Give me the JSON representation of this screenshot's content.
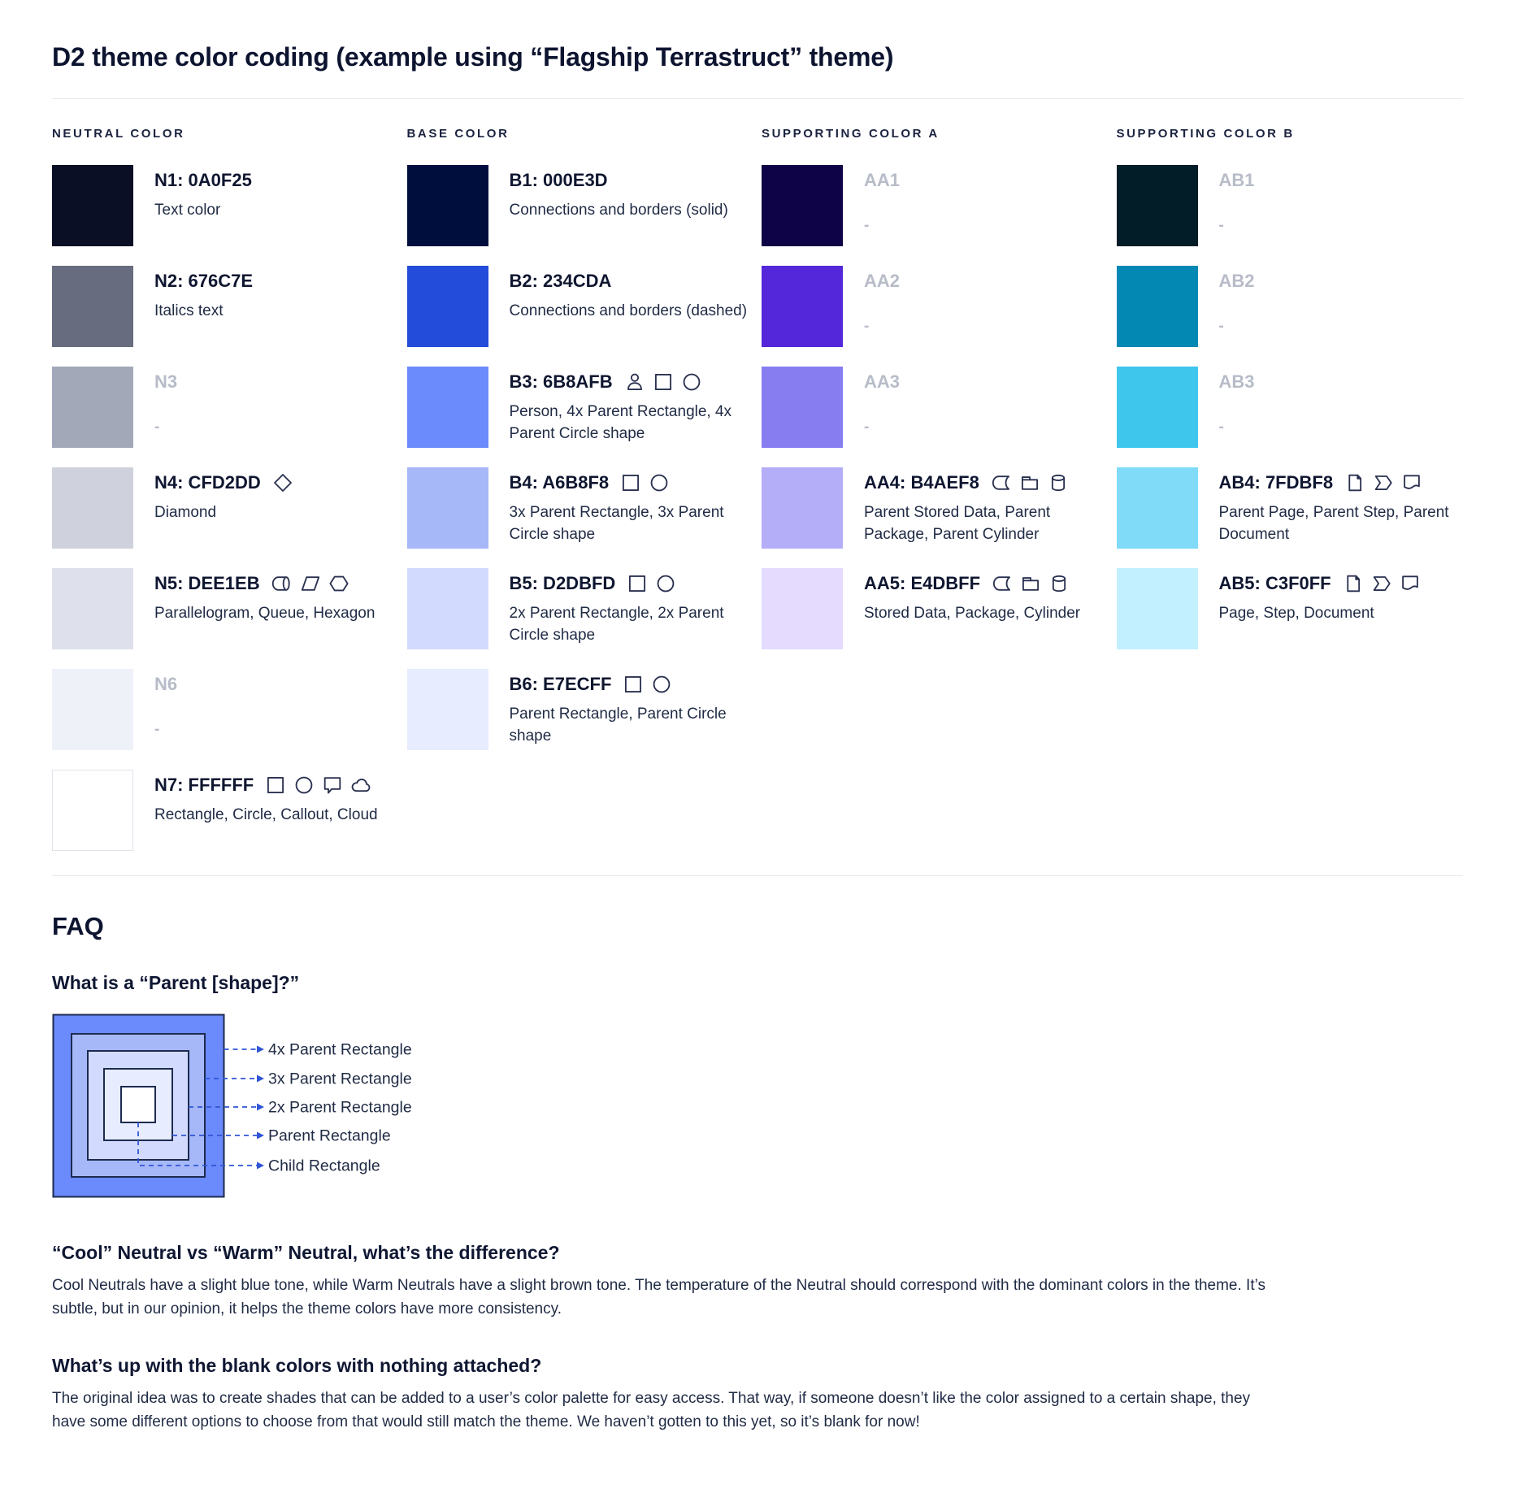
{
  "page": {
    "title": "D2 theme color coding (example using “Flagship Terrastruct” theme)"
  },
  "palette": {
    "columns": [
      {
        "header": "NEUTRAL COLOR",
        "entries": [
          {
            "id": "N1",
            "label": "N1: 0A0F25",
            "swatch": "#0A0F25",
            "desc": "Text color",
            "icons": [],
            "muted": false,
            "swatch_border": false
          },
          {
            "id": "N2",
            "label": "N2: 676C7E",
            "swatch": "#676C7E",
            "desc": "Italics text",
            "icons": [],
            "muted": false,
            "swatch_border": false
          },
          {
            "id": "N3",
            "label": "N3",
            "swatch": "#A2A8B8",
            "desc": "-",
            "icons": [],
            "muted": true,
            "swatch_border": false
          },
          {
            "id": "N4",
            "label": "N4: CFD2DD",
            "swatch": "#CFD2DD",
            "desc": "Diamond",
            "icons": [
              "diamond"
            ],
            "muted": false,
            "swatch_border": false
          },
          {
            "id": "N5",
            "label": "N5: DEE1EB",
            "swatch": "#DEE1EB",
            "desc": "Parallelogram, Queue, Hexagon",
            "icons": [
              "queue",
              "parallelogram",
              "hexagon"
            ],
            "muted": false,
            "swatch_border": false
          },
          {
            "id": "N6",
            "label": "N6",
            "swatch": "#EEF1F8",
            "desc": "-",
            "icons": [],
            "muted": true,
            "swatch_border": false
          },
          {
            "id": "N7",
            "label": "N7: FFFFFF",
            "swatch": "#FFFFFF",
            "desc": "Rectangle, Circle, Callout, Cloud",
            "icons": [
              "rectangle",
              "circle",
              "callout",
              "cloud"
            ],
            "muted": false,
            "swatch_border": true
          }
        ]
      },
      {
        "header": "BASE COLOR",
        "entries": [
          {
            "id": "B1",
            "label": "B1: 000E3D",
            "swatch": "#000E3D",
            "desc": "Connections and borders (solid)",
            "icons": [],
            "muted": false,
            "swatch_border": false
          },
          {
            "id": "B2",
            "label": "B2: 234CDA",
            "swatch": "#234CDA",
            "desc": "Connections and borders (dashed)",
            "icons": [],
            "muted": false,
            "swatch_border": false
          },
          {
            "id": "B3",
            "label": "B3: 6B8AFB",
            "swatch": "#6B8AFB",
            "desc": "Person, 4x Parent Rectangle, 4x Parent Circle shape",
            "icons": [
              "person",
              "rectangle",
              "circle"
            ],
            "muted": false,
            "swatch_border": false
          },
          {
            "id": "B4",
            "label": "B4: A6B8F8",
            "swatch": "#A6B8F8",
            "desc": "3x Parent Rectangle, 3x Parent Circle shape",
            "icons": [
              "rectangle",
              "circle"
            ],
            "muted": false,
            "swatch_border": false
          },
          {
            "id": "B5",
            "label": "B5: D2DBFD",
            "swatch": "#D2DBFD",
            "desc": "2x Parent Rectangle, 2x Parent Circle shape",
            "icons": [
              "rectangle",
              "circle"
            ],
            "muted": false,
            "swatch_border": false
          },
          {
            "id": "B6",
            "label": "B6: E7ECFF",
            "swatch": "#E7ECFF",
            "desc": "Parent Rectangle, Parent Circle shape",
            "icons": [
              "rectangle",
              "circle"
            ],
            "muted": false,
            "swatch_border": false
          }
        ]
      },
      {
        "header": "SUPPORTING COLOR A",
        "entries": [
          {
            "id": "AA1",
            "label": "AA1",
            "swatch": "#0E0346",
            "desc": "-",
            "icons": [],
            "muted": true,
            "swatch_border": false
          },
          {
            "id": "AA2",
            "label": "AA2",
            "swatch": "#5527DB",
            "desc": "-",
            "icons": [],
            "muted": true,
            "swatch_border": false
          },
          {
            "id": "AA3",
            "label": "AA3",
            "swatch": "#877DF0",
            "desc": "-",
            "icons": [],
            "muted": true,
            "swatch_border": false
          },
          {
            "id": "AA4",
            "label": "AA4: B4AEF8",
            "swatch": "#B4AEF8",
            "desc": "Parent Stored Data, Parent Package,  Parent Cylinder",
            "icons": [
              "stored-data",
              "package",
              "cylinder"
            ],
            "muted": false,
            "swatch_border": false
          },
          {
            "id": "AA5",
            "label": "AA5: E4DBFF",
            "swatch": "#E4DBFF",
            "desc": "Stored Data, Package, Cylinder",
            "icons": [
              "stored-data",
              "package",
              "cylinder"
            ],
            "muted": false,
            "swatch_border": false
          }
        ]
      },
      {
        "header": "SUPPORTING COLOR B",
        "entries": [
          {
            "id": "AB1",
            "label": "AB1",
            "swatch": "#021D27",
            "desc": "-",
            "icons": [],
            "muted": true,
            "swatch_border": false
          },
          {
            "id": "AB2",
            "label": "AB2",
            "swatch": "#0288B3",
            "desc": "-",
            "icons": [],
            "muted": true,
            "swatch_border": false
          },
          {
            "id": "AB3",
            "label": "AB3",
            "swatch": "#3EC6ED",
            "desc": "-",
            "icons": [],
            "muted": true,
            "swatch_border": false
          },
          {
            "id": "AB4",
            "label": "AB4: 7FDBF8",
            "swatch": "#7FDBF8",
            "desc": "Parent Page, Parent Step, Parent Document",
            "icons": [
              "page",
              "step",
              "document"
            ],
            "muted": false,
            "swatch_border": false
          },
          {
            "id": "AB5",
            "label": "AB5: C3F0FF",
            "swatch": "#C3F0FF",
            "desc": "Page, Step, Document",
            "icons": [
              "page",
              "step",
              "document"
            ],
            "muted": false,
            "swatch_border": false
          }
        ]
      }
    ]
  },
  "faq": {
    "title": "FAQ",
    "q1": {
      "question": "What is a “Parent [shape]?”"
    },
    "diagram": {
      "labels": [
        "4x Parent Rectangle",
        "3x Parent Rectangle",
        "2x Parent Rectangle",
        "Parent Rectangle",
        "Child Rectangle"
      ],
      "fills": [
        "#6B8AFB",
        "#A6B8F8",
        "#D2DBFD",
        "#E7ECFF",
        "#FFFFFF"
      ],
      "border_color": "#1D2B50",
      "dash_color": "#2F55D6",
      "label_color": "#1f2a44"
    },
    "q2": {
      "question": "“Cool” Neutral vs “Warm” Neutral, what’s the difference?",
      "answer": "Cool Neutrals have a slight blue tone, while Warm Neutrals have a slight brown tone. The temperature of the Neutral should correspond with the dominant colors in the theme. It’s subtle, but in our opinion, it helps the theme colors have more consistency."
    },
    "q3": {
      "question": "What’s up with the blank colors with nothing attached?",
      "answer": "The original idea was to create shades that can be added to a user’s color palette for easy access. That way, if someone doesn’t like the color assigned to a certain shape, they have some different options to choose from that would still match the theme. We haven’t gotten to this yet, so it’s blank for now!"
    }
  }
}
